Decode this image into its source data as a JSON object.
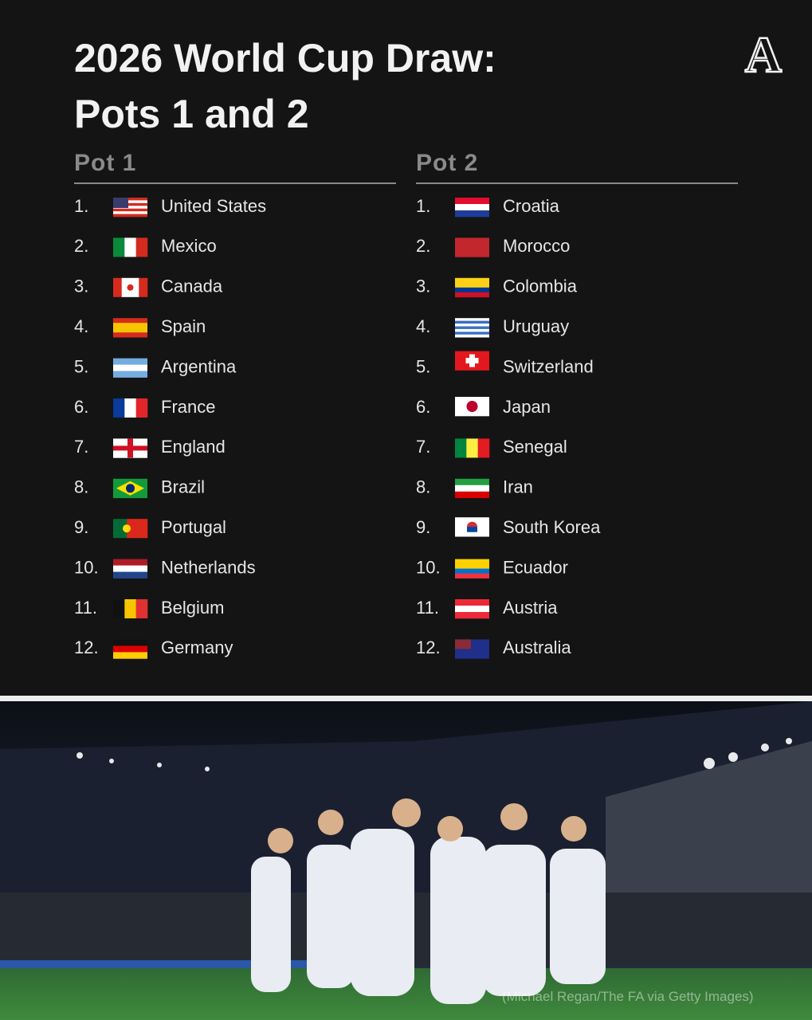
{
  "header": {
    "title_line1": "2026 World Cup Draw:",
    "title_line2": "Pots 1 and 2",
    "logo": "A"
  },
  "pots": [
    {
      "title": "Pot 1",
      "teams": [
        {
          "rank": "1.",
          "name": "United States"
        },
        {
          "rank": "2.",
          "name": "Mexico"
        },
        {
          "rank": "3.",
          "name": "Canada"
        },
        {
          "rank": "4.",
          "name": "Spain"
        },
        {
          "rank": "5.",
          "name": "Argentina"
        },
        {
          "rank": "6.",
          "name": "France"
        },
        {
          "rank": "7.",
          "name": "England"
        },
        {
          "rank": "8.",
          "name": "Brazil"
        },
        {
          "rank": "9.",
          "name": "Portugal"
        },
        {
          "rank": "10.",
          "name": "Netherlands"
        },
        {
          "rank": "11.",
          "name": "Belgium"
        },
        {
          "rank": "12.",
          "name": "Germany"
        }
      ]
    },
    {
      "title": "Pot 2",
      "teams": [
        {
          "rank": "1.",
          "name": "Croatia"
        },
        {
          "rank": "2.",
          "name": "Morocco"
        },
        {
          "rank": "3.",
          "name": "Colombia"
        },
        {
          "rank": "4.",
          "name": "Uruguay"
        },
        {
          "rank": "5.",
          "name": "Switzerland"
        },
        {
          "rank": "6.",
          "name": "Japan"
        },
        {
          "rank": "7.",
          "name": "Senegal"
        },
        {
          "rank": "8.",
          "name": "Iran"
        },
        {
          "rank": "9.",
          "name": "South Korea"
        },
        {
          "rank": "10.",
          "name": "Ecuador"
        },
        {
          "rank": "11.",
          "name": "Austria"
        },
        {
          "rank": "12.",
          "name": "Australia"
        }
      ]
    }
  ],
  "photo": {
    "credit": "(Michael Regan/The FA via Getty Images)"
  }
}
